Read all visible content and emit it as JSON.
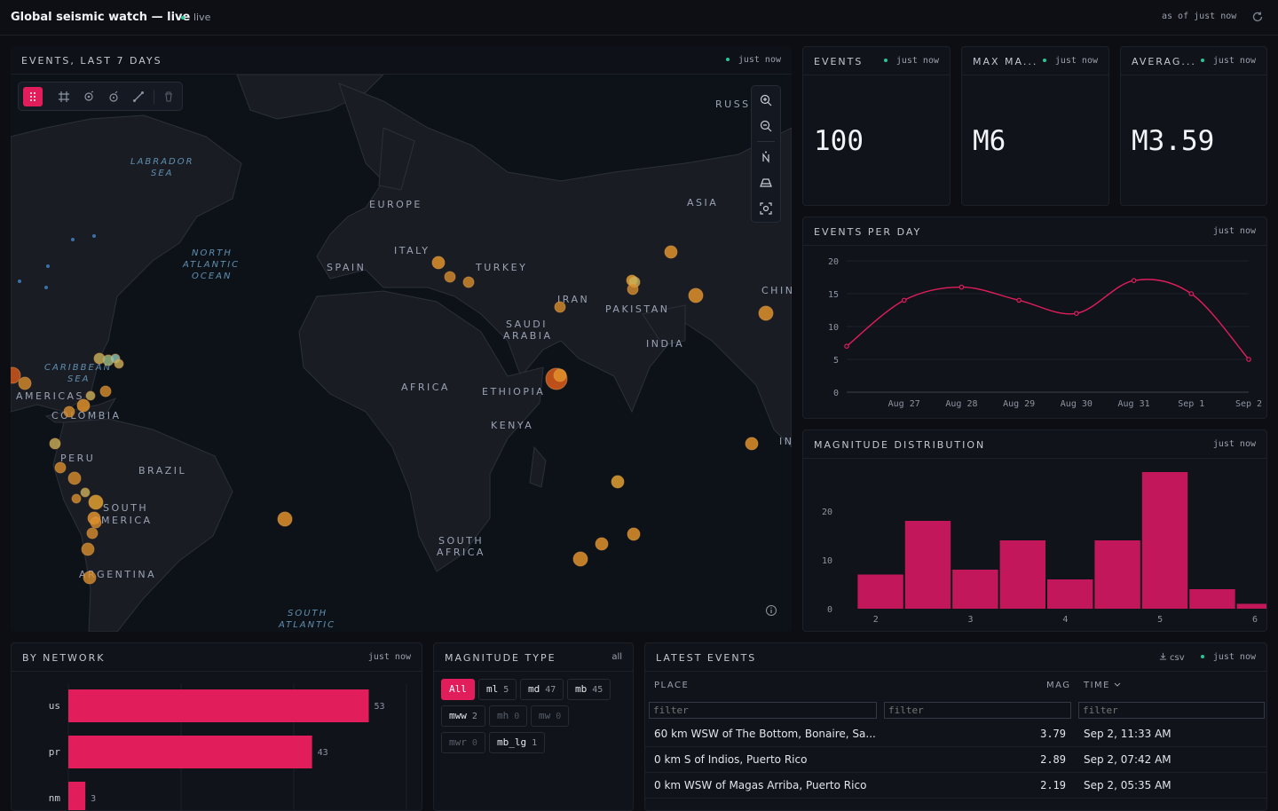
{
  "header": {
    "title": "Global seismic watch — live",
    "live_label": "live",
    "as_of": "as of just now"
  },
  "map": {
    "title": "EVENTS, LAST 7 DAYS",
    "status": "just now",
    "labels": [
      "RUSSI",
      "LABRADOR",
      "SEA",
      "EUROPE",
      "ASIA",
      "NORTH",
      "ATLANTIC",
      "OCEAN",
      "ITALY",
      "SPAIN",
      "TURKEY",
      "CHIN",
      "IRAN",
      "PAKISTAN",
      "SAUDI",
      "ARABIA",
      "INDIA",
      "CARIBBEAN",
      "SEA",
      "AMERICAS",
      "COLOMBIA",
      "AFRICA",
      "ETHIOPIA",
      "KENYA",
      "IN",
      "PERU",
      "BRAZIL",
      "SOUTH",
      "AMERICA",
      "SOUTH",
      "AFRICA",
      "ARGENTINA",
      "SOUTH",
      "ATLANTIC"
    ],
    "tools": [
      "drag-icon",
      "polygon-icon",
      "point-icon",
      "circle-icon",
      "line-icon",
      "trash-icon"
    ],
    "controls": [
      "zoom-in-icon",
      "zoom-out-icon",
      "compass-icon",
      "pitch-icon",
      "fit-icon"
    ]
  },
  "stats": [
    {
      "title": "EVENTS",
      "status": "just now",
      "value": "100"
    },
    {
      "title": "MAX MA...",
      "status": "just now",
      "value": "M6"
    },
    {
      "title": "AVERAG...",
      "status": "just now",
      "value": "M3.59"
    }
  ],
  "events_per_day": {
    "title": "EVENTS PER DAY",
    "status": "just now",
    "chart_data": {
      "type": "line",
      "categories": [
        "Aug 27",
        "Aug 28",
        "Aug 29",
        "Aug 30",
        "Aug 31",
        "Sep 1",
        "Sep 2"
      ],
      "x": [
        "Aug 26",
        "Aug 27",
        "Aug 28",
        "Aug 29",
        "Aug 30",
        "Aug 31",
        "Sep 1",
        "Sep 2"
      ],
      "values": [
        7,
        14,
        16,
        14,
        12,
        17,
        15,
        5
      ],
      "yticks": [
        0,
        5,
        10,
        15,
        20
      ],
      "ylim": [
        0,
        20
      ],
      "color": "#e11d5c"
    }
  },
  "magnitude_distribution": {
    "title": "MAGNITUDE DISTRIBUTION",
    "status": "just now",
    "chart_data": {
      "type": "bar",
      "bin_edges": [
        1.8,
        2.3,
        2.8,
        3.3,
        3.8,
        4.3,
        4.8,
        5.3,
        5.8,
        6.3
      ],
      "values": [
        7,
        18,
        8,
        14,
        6,
        14,
        28,
        4,
        1
      ],
      "xticks": [
        2,
        3,
        4,
        5,
        6
      ],
      "yticks": [
        0,
        10,
        20
      ],
      "xlim": [
        1.6,
        6
      ],
      "ylim": [
        0,
        28
      ],
      "color": "#c2185b"
    }
  },
  "by_network": {
    "title": "BY NETWORK",
    "status": "just now",
    "chart_data": {
      "type": "bar",
      "orientation": "horizontal",
      "categories": [
        "us",
        "pr",
        "nm"
      ],
      "values": [
        53,
        43,
        3
      ],
      "xlim": [
        0,
        62
      ],
      "color": "#e11d5c"
    }
  },
  "magnitude_type": {
    "title": "MAGNITUDE TYPE",
    "status": "all",
    "chips": [
      {
        "label": "All",
        "count": "",
        "state": "active"
      },
      {
        "label": "ml",
        "count": "5",
        "state": "on"
      },
      {
        "label": "md",
        "count": "47",
        "state": "on"
      },
      {
        "label": "mb",
        "count": "45",
        "state": "on"
      },
      {
        "label": "mww",
        "count": "2",
        "state": "on"
      },
      {
        "label": "mh",
        "count": "0",
        "state": "dim"
      },
      {
        "label": "mw",
        "count": "0",
        "state": "dim"
      },
      {
        "label": "mwr",
        "count": "0",
        "state": "dim"
      },
      {
        "label": "mb_lg",
        "count": "1",
        "state": "on"
      }
    ]
  },
  "latest_events": {
    "title": "LATEST EVENTS",
    "csv_label": "csv",
    "status": "just now",
    "columns": {
      "place": "PLACE",
      "mag": "MAG",
      "time": "TIME"
    },
    "filter_placeholder": "filter",
    "rows": [
      {
        "place": "60 km WSW of The Bottom, Bonaire, Sa...",
        "mag": "3.79",
        "time": "Sep 2, 11:33 AM"
      },
      {
        "place": "0 km S of Indios, Puerto Rico",
        "mag": "2.89",
        "time": "Sep 2, 07:42 AM"
      },
      {
        "place": "0 km WSW of Magas Arriba, Puerto Rico",
        "mag": "2.19",
        "time": "Sep 2, 05:35 AM"
      }
    ]
  },
  "colors": {
    "accent": "#e11d5c",
    "ok": "#27c59a",
    "quake": "#e08a2a",
    "quake_big": "#d0561c",
    "quake_small": "#c9b25a"
  }
}
